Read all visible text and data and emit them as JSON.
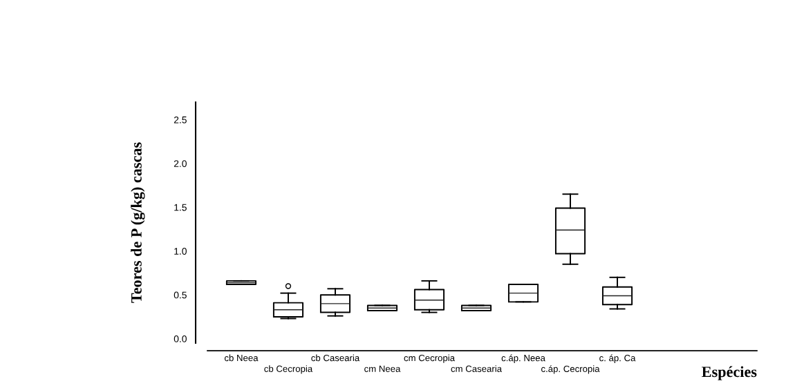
{
  "chart_data": {
    "type": "box",
    "xlabel": "Espécies",
    "ylabel": "Teores de P (g/kg) cascas",
    "categories": [
      "cb Neea",
      "cb Cecropia",
      "cb Casearia",
      "cm Neea",
      "cm Cecropia",
      "cm Casearia",
      "c.áp. Neea",
      "c.áp. Cecropia",
      "c. áp. Ca"
    ],
    "boxes": [
      {
        "low": 0.62,
        "q1": 0.62,
        "median": 0.64,
        "q3": 0.66,
        "high": 0.66
      },
      {
        "low": 0.23,
        "q1": 0.25,
        "median": 0.33,
        "q3": 0.41,
        "high": 0.52,
        "outliers": [
          0.6
        ]
      },
      {
        "low": 0.26,
        "q1": 0.3,
        "median": 0.4,
        "q3": 0.5,
        "high": 0.57
      },
      {
        "low": 0.32,
        "q1": 0.32,
        "median": 0.35,
        "q3": 0.38,
        "high": 0.38
      },
      {
        "low": 0.3,
        "q1": 0.33,
        "median": 0.44,
        "q3": 0.56,
        "high": 0.66
      },
      {
        "low": 0.32,
        "q1": 0.32,
        "median": 0.35,
        "q3": 0.38,
        "high": 0.38
      },
      {
        "low": 0.42,
        "q1": 0.42,
        "median": 0.52,
        "q3": 0.62,
        "high": 0.62
      },
      {
        "low": 0.85,
        "q1": 0.97,
        "median": 1.24,
        "q3": 1.49,
        "high": 1.65
      },
      {
        "low": 0.34,
        "q1": 0.39,
        "median": 0.49,
        "q3": 0.59,
        "high": 0.7
      }
    ],
    "ylim": [
      -0.05,
      2.7
    ],
    "yticks": [
      {
        "value": 0,
        "label": "0.0"
      },
      {
        "value": 0.5,
        "label": "0.5"
      },
      {
        "value": 1,
        "label": "1.0"
      },
      {
        "value": 1.5,
        "label": "1.5"
      },
      {
        "value": 2,
        "label": "2.0"
      },
      {
        "value": 2.5,
        "label": "2.5"
      }
    ],
    "grid": false,
    "legend": false
  }
}
